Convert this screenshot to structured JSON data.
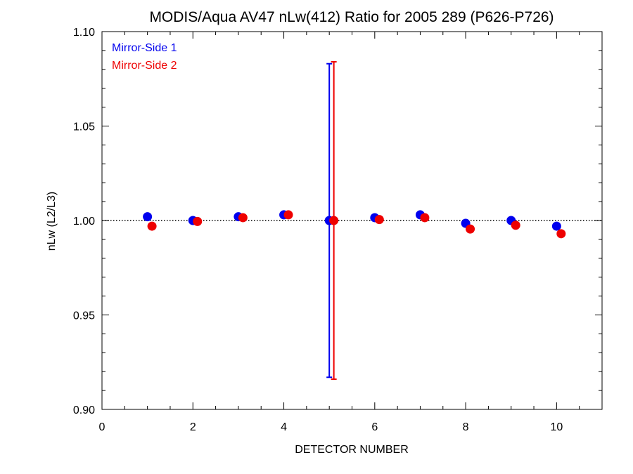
{
  "chart_data": {
    "type": "scatter",
    "title": "MODIS/Aqua AV47 nLw(412) Ratio for 2005 289 (P626-P726)",
    "xlabel": "DETECTOR NUMBER",
    "ylabel": "nLw (L2/L3)",
    "xlim": [
      0,
      11
    ],
    "ylim": [
      0.9,
      1.1
    ],
    "x_ticks": [
      0,
      2,
      4,
      6,
      8,
      10
    ],
    "y_ticks": [
      0.9,
      0.95,
      1.0,
      1.05,
      1.1
    ],
    "y_tick_labels": [
      "0.90",
      "0.95",
      "1.00",
      "1.05",
      "1.10"
    ],
    "reference_line": 1.0,
    "legend": {
      "placement": "top-left"
    },
    "series": [
      {
        "name": "Mirror-Side 1",
        "color": "#0000ee",
        "x": [
          1,
          2,
          3,
          4,
          5,
          6,
          7,
          8,
          9,
          10
        ],
        "y": [
          1.002,
          1.0,
          1.002,
          1.003,
          1.0,
          1.0015,
          1.003,
          0.9985,
          1.0,
          0.997
        ],
        "error_bars": [
          {
            "x": 5,
            "low": 0.917,
            "high": 1.083
          }
        ]
      },
      {
        "name": "Mirror-Side 2",
        "color": "#ee0000",
        "x": [
          1.1,
          2.1,
          3.1,
          4.1,
          5.1,
          6.1,
          7.1,
          8.1,
          9.1,
          10.1
        ],
        "y": [
          0.997,
          0.9995,
          1.0015,
          1.003,
          1.0,
          1.0005,
          1.0015,
          0.9955,
          0.9975,
          0.993
        ],
        "error_bars": [
          {
            "x": 5.1,
            "low": 0.916,
            "high": 1.084
          }
        ]
      }
    ]
  }
}
